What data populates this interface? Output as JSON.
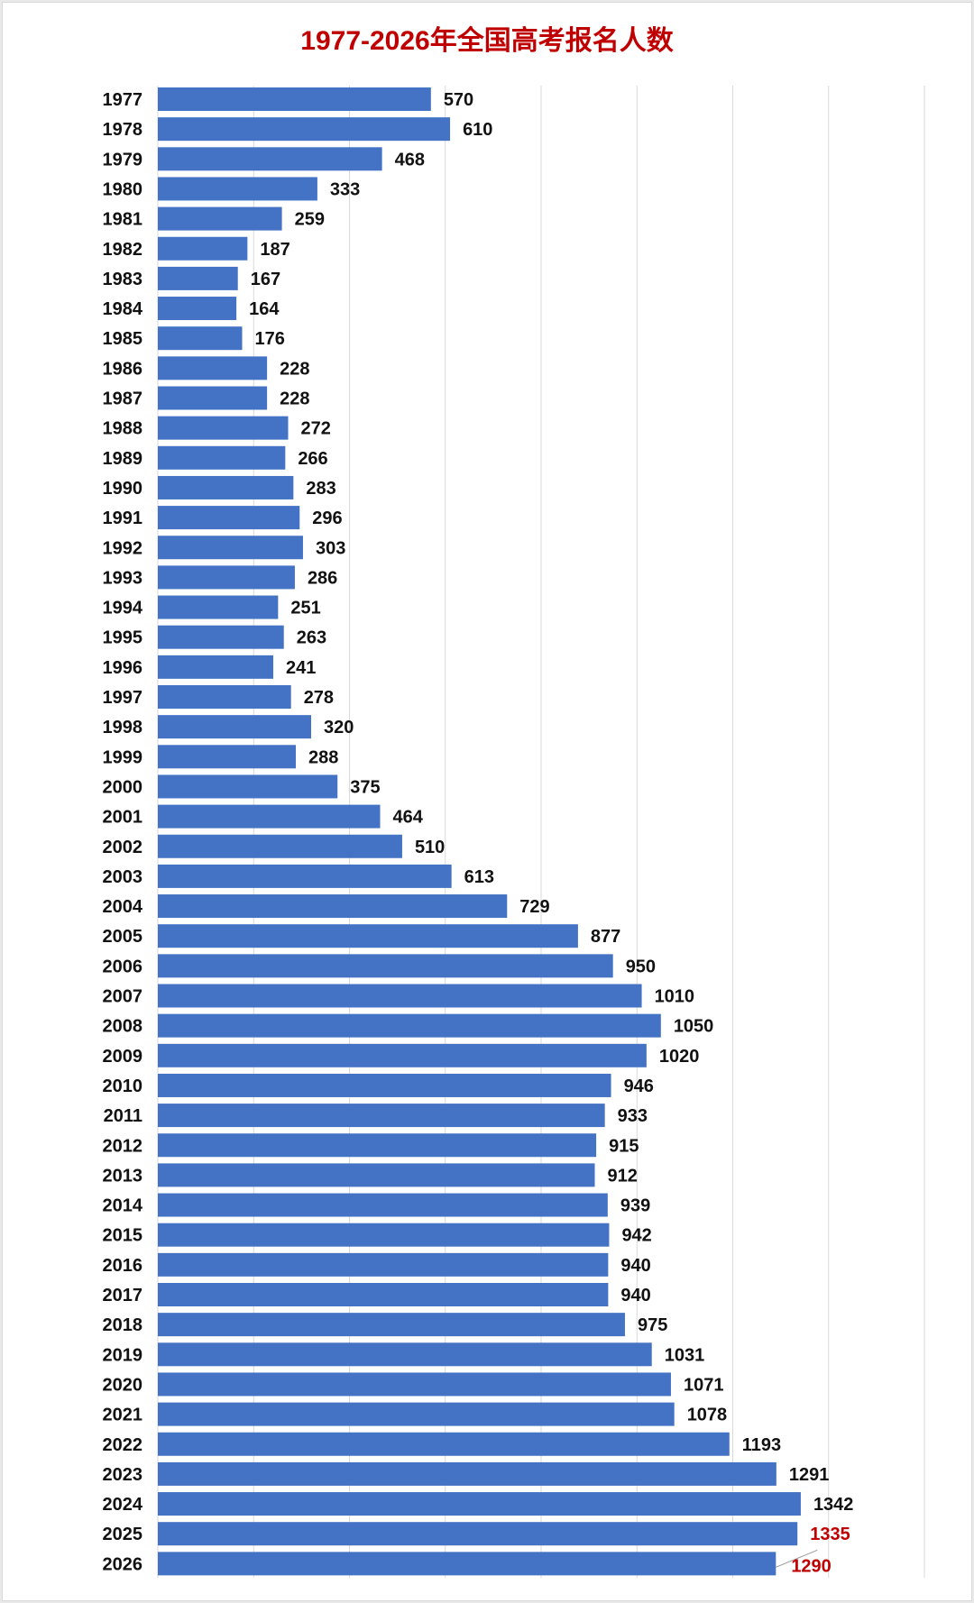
{
  "chart_data": {
    "type": "bar",
    "orientation": "horizontal",
    "title": "1977-2026年全国高考报名人数",
    "xlabel": "",
    "ylabel": "",
    "xlim": [
      0,
      1600
    ],
    "grid": true,
    "legend": "none",
    "categories": [
      "1977",
      "1978",
      "1979",
      "1980",
      "1981",
      "1982",
      "1983",
      "1984",
      "1985",
      "1986",
      "1987",
      "1988",
      "1989",
      "1990",
      "1991",
      "1992",
      "1993",
      "1994",
      "1995",
      "1996",
      "1997",
      "1998",
      "1999",
      "2000",
      "2001",
      "2002",
      "2003",
      "2004",
      "2005",
      "2006",
      "2007",
      "2008",
      "2009",
      "2010",
      "2011",
      "2012",
      "2013",
      "2014",
      "2015",
      "2016",
      "2017",
      "2018",
      "2019",
      "2020",
      "2021",
      "2022",
      "2023",
      "2024",
      "2025",
      "2026"
    ],
    "values": [
      570,
      610,
      468,
      333,
      259,
      187,
      167,
      164,
      176,
      228,
      228,
      272,
      266,
      283,
      296,
      303,
      286,
      251,
      263,
      241,
      278,
      320,
      288,
      375,
      464,
      510,
      613,
      729,
      877,
      950,
      1010,
      1050,
      1020,
      946,
      933,
      915,
      912,
      939,
      942,
      940,
      940,
      975,
      1031,
      1071,
      1078,
      1193,
      1291,
      1342,
      1335,
      1290
    ],
    "highlighted_categories": [
      "2025",
      "2026"
    ]
  },
  "colors": {
    "bar": "#4472c4",
    "title": "#c00000",
    "highlight_label": "#c00000",
    "label": "#111111",
    "grid": "#d9d9d9"
  }
}
